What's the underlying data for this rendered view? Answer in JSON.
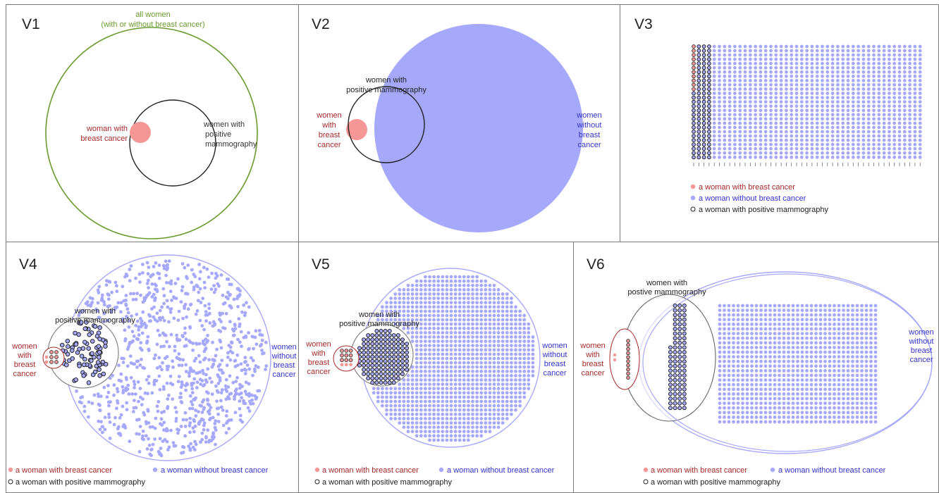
{
  "colors": {
    "cancer": "#f59797",
    "cancer_text": "#a52a2a",
    "no_cancer": "#a6a8fb",
    "no_cancer_text": "#3333cc",
    "all_women": "#6a9a2e",
    "positive_outline": "#333333",
    "frame": "#7a7a7a"
  },
  "panels": {
    "v1": {
      "title": "V1",
      "all_women_line1": "all women",
      "all_women_line2": "(with or without breast cancer)",
      "cancer_line1": "woman with",
      "cancer_line2": "breast cancer",
      "positive_line1": "women with",
      "positive_line2": "positive",
      "positive_line3": "mammography"
    },
    "v2": {
      "title": "V2",
      "positive_line1": "women with",
      "positive_line2": "positive mammography",
      "cancer_line1": "women",
      "cancer_line2": "with",
      "cancer_line3": "breast",
      "cancer_line4": "cancer",
      "nocancer_line1": "women",
      "nocancer_line2": "without",
      "nocancer_line3": "breast",
      "nocancer_line4": "cancer"
    },
    "v3": {
      "title": "V3"
    },
    "v4": {
      "title": "V4",
      "positive_line1": "women with",
      "positive_line2": "positive mammography",
      "cancer_line1": "women",
      "cancer_line2": "with",
      "cancer_line3": "breast",
      "cancer_line4": "cancer",
      "nocancer_line1": "women",
      "nocancer_line2": "without",
      "nocancer_line3": "breast",
      "nocancer_line4": "cancer"
    },
    "v5": {
      "title": "V5",
      "positive_line1": "women with",
      "positive_line2": "positive mammography",
      "cancer_line1": "women",
      "cancer_line2": "with",
      "cancer_line3": "breast",
      "cancer_line4": "cancer",
      "nocancer_line1": "women",
      "nocancer_line2": "without",
      "nocancer_line3": "breast",
      "nocancer_line4": "cancer"
    },
    "v6": {
      "title": "V6",
      "positive_line1": "women with",
      "positive_line2": "postive mammography",
      "cancer_line1": "women",
      "cancer_line2": "with",
      "cancer_line3": "breast",
      "cancer_line4": "cancer",
      "nocancer_line1": "women",
      "nocancer_line2": "without",
      "nocancer_line3": "breast",
      "nocancer_line4": "cancer"
    }
  },
  "legend": {
    "cancer": "a woman with breast cancer",
    "no_cancer": "a woman without breast cancer",
    "positive": "a woman with positive mammography"
  }
}
